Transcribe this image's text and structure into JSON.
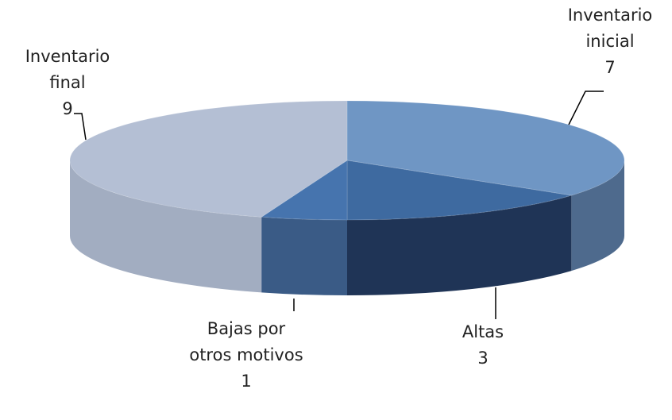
{
  "chart_data": {
    "type": "pie3d",
    "categories": [
      "Inventario inicial",
      "Altas",
      "Bajas por otros motivos",
      "Inventario final"
    ],
    "values": [
      7,
      3,
      1,
      9
    ],
    "colors": [
      "#6f96c4",
      "#3e6aa0",
      "#4674ae",
      "#b4bfd4"
    ],
    "side_colors": [
      "#4e6a8d",
      "#1f3456",
      "#3a5b86",
      "#a2adc1"
    ]
  }
}
